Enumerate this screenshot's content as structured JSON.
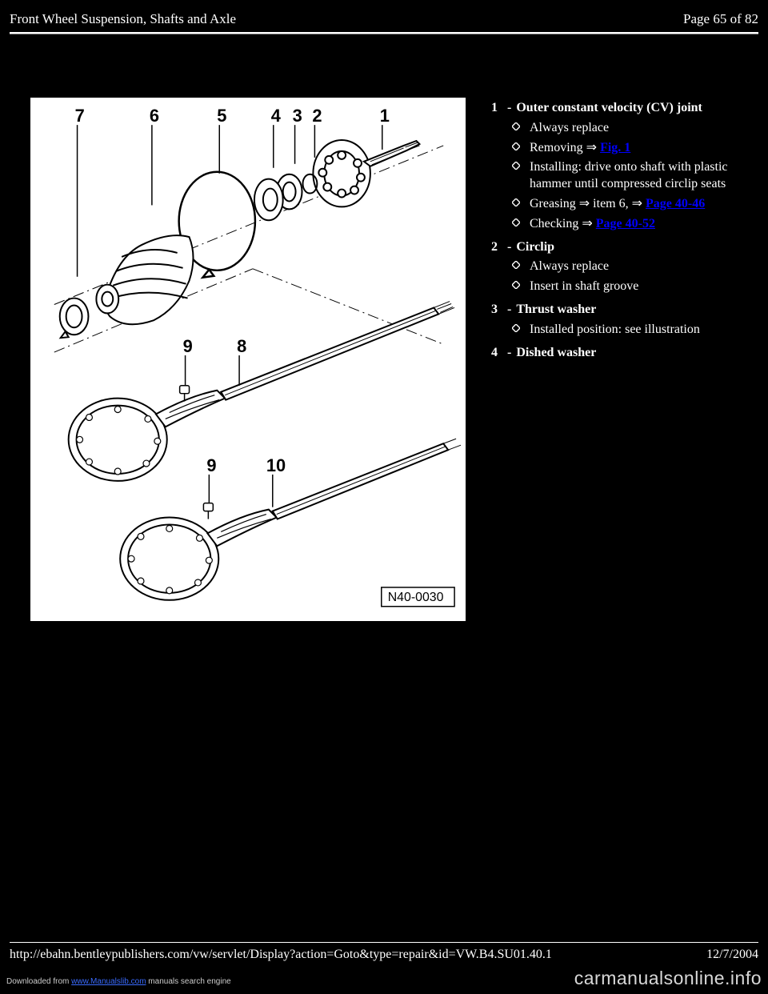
{
  "header": {
    "title": "Front Wheel Suspension, Shafts and Axle",
    "page": "Page 65 of 82"
  },
  "diagram": {
    "ref": "N40-0030",
    "callouts": [
      "1",
      "2",
      "3",
      "4",
      "5",
      "6",
      "7",
      "8",
      "9",
      "9",
      "10"
    ]
  },
  "items": [
    {
      "num": "1",
      "label": "Outer constant velocity (CV) joint",
      "subs": [
        {
          "text": "Always replace"
        },
        {
          "text": "Removing ",
          "arrow": true,
          "link": "Fig. 1"
        },
        {
          "text": "Installing: drive onto shaft with plastic hammer until compressed circlip seats"
        },
        {
          "text": "Greasing ",
          "arrow": true,
          "tail": " item 6, ",
          "arrow2": true,
          "link": "Page 40-46"
        },
        {
          "text": "Checking ",
          "arrow": true,
          "link": "Page 40-52"
        }
      ]
    },
    {
      "num": "2",
      "label": "Circlip",
      "subs": [
        {
          "text": "Always replace"
        },
        {
          "text": "Insert in shaft groove"
        }
      ]
    },
    {
      "num": "3",
      "label": "Thrust washer",
      "subs": [
        {
          "text": "Installed position: see illustration"
        }
      ]
    },
    {
      "num": "4",
      "label": "Dished washer"
    }
  ],
  "footer": {
    "url": "http://ebahn.bentleypublishers.com/vw/servlet/Display?action=Goto&type=repair&id=VW.B4.SU01.40.1",
    "date": "12/7/2004"
  },
  "download": {
    "pre": "Downloaded from ",
    "link": "www.Manualslib.com",
    "post": " manuals search engine"
  },
  "watermark": "carmanualsonline.info"
}
